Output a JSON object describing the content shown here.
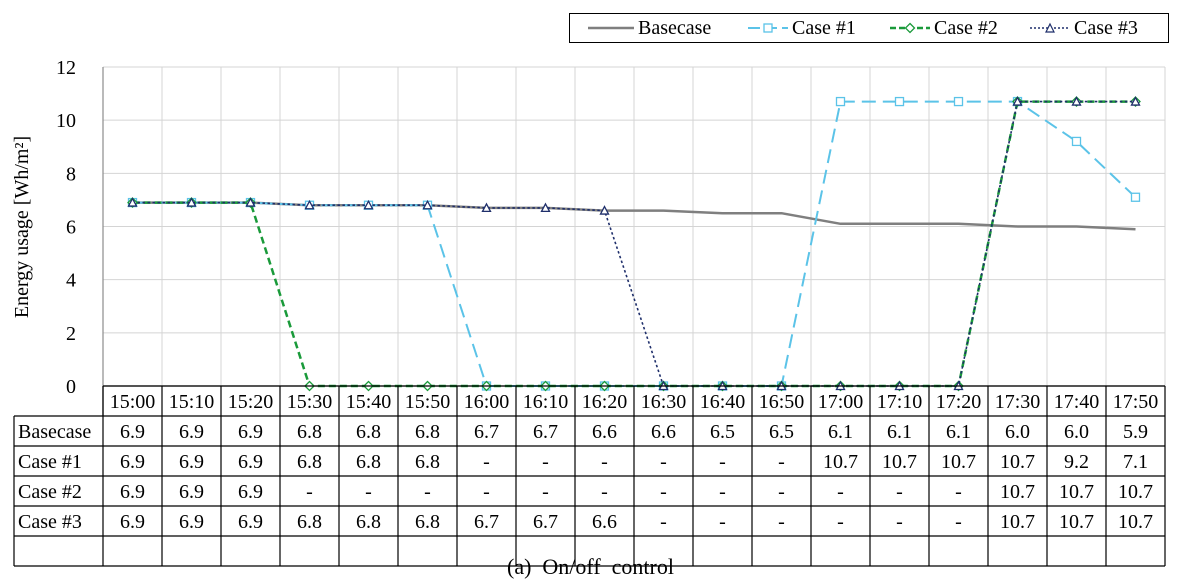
{
  "chart_data": {
    "type": "line",
    "caption": "(a)  On/off  control",
    "ylabel": "Energy  usage [Wh/m²]",
    "ylim": [
      0,
      12
    ],
    "yticks": [
      0,
      2,
      4,
      6,
      8,
      10,
      12
    ],
    "grid": true,
    "legend_position": "top-right",
    "categories": [
      "15:00",
      "15:10",
      "15:20",
      "15:30",
      "15:40",
      "15:50",
      "16:00",
      "16:10",
      "16:20",
      "16:30",
      "16:40",
      "16:50",
      "17:00",
      "17:10",
      "17:20",
      "17:30",
      "17:40",
      "17:50"
    ],
    "series": [
      {
        "name": "Basecase",
        "color": "#7f7f7f",
        "marker": "none",
        "dash": "solid",
        "values": [
          6.9,
          6.9,
          6.9,
          6.8,
          6.8,
          6.8,
          6.7,
          6.7,
          6.6,
          6.6,
          6.5,
          6.5,
          6.1,
          6.1,
          6.1,
          6.0,
          6.0,
          5.9
        ],
        "table": [
          "6.9",
          "6.9",
          "6.9",
          "6.8",
          "6.8",
          "6.8",
          "6.7",
          "6.7",
          "6.6",
          "6.6",
          "6.5",
          "6.5",
          "6.1",
          "6.1",
          "6.1",
          "6.0",
          "6.0",
          "5.9"
        ]
      },
      {
        "name": "Case #1",
        "color": "#5bc3e8",
        "marker": "square",
        "dash": "long-dash",
        "values": [
          6.9,
          6.9,
          6.9,
          6.8,
          6.8,
          6.8,
          0,
          0,
          0,
          0,
          0,
          0,
          10.7,
          10.7,
          10.7,
          10.7,
          9.2,
          7.1
        ],
        "table": [
          "6.9",
          "6.9",
          "6.9",
          "6.8",
          "6.8",
          "6.8",
          "-",
          "-",
          "-",
          "-",
          "-",
          "-",
          "10.7",
          "10.7",
          "10.7",
          "10.7",
          "9.2",
          "7.1"
        ]
      },
      {
        "name": "Case #2",
        "color": "#1a9a3a",
        "marker": "diamond",
        "dash": "dash",
        "values": [
          6.9,
          6.9,
          6.9,
          0,
          0,
          0,
          0,
          0,
          0,
          0,
          0,
          0,
          0,
          0,
          0,
          10.7,
          10.7,
          10.7
        ],
        "table": [
          "6.9",
          "6.9",
          "6.9",
          "-",
          "-",
          "-",
          "-",
          "-",
          "-",
          "-",
          "-",
          "-",
          "-",
          "-",
          "-",
          "10.7",
          "10.7",
          "10.7"
        ]
      },
      {
        "name": "Case #3",
        "color": "#1f2f6b",
        "marker": "triangle",
        "dash": "dot",
        "values": [
          6.9,
          6.9,
          6.9,
          6.8,
          6.8,
          6.8,
          6.7,
          6.7,
          6.6,
          0,
          0,
          0,
          0,
          0,
          0,
          10.7,
          10.7,
          10.7
        ],
        "table": [
          "6.9",
          "6.9",
          "6.9",
          "6.8",
          "6.8",
          "6.8",
          "6.7",
          "6.7",
          "6.6",
          "-",
          "-",
          "-",
          "-",
          "-",
          "-",
          "10.7",
          "10.7",
          "10.7"
        ]
      }
    ]
  }
}
